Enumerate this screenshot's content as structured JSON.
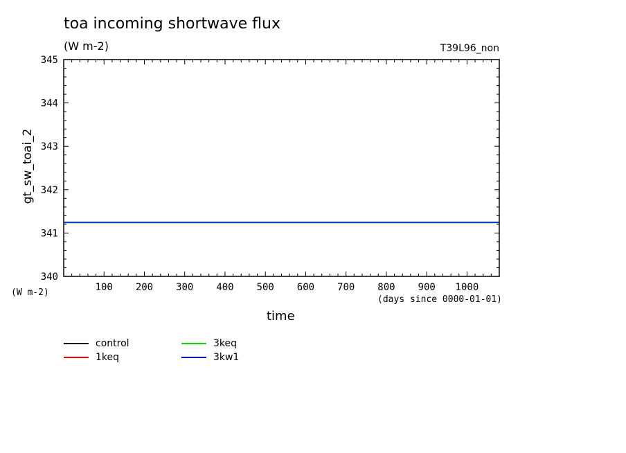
{
  "chart_data": {
    "type": "line",
    "title": "toa incoming shortwave flux",
    "units": "(W m-2)",
    "run_id": "T39L96_non",
    "ylabel": "gt_sw_toai_2",
    "ylabel_units": "(W m-2)",
    "xlabel": "time",
    "xlabel_units": "(days since 0000-01-01)",
    "xlim": [
      0,
      1080
    ],
    "ylim": [
      340,
      345
    ],
    "xticks": [
      100,
      200,
      300,
      400,
      500,
      600,
      700,
      800,
      900,
      1000
    ],
    "yticks": [
      340,
      341,
      342,
      343,
      344,
      345
    ],
    "x": [
      0,
      90,
      180,
      270,
      360,
      450,
      540,
      630,
      720,
      810,
      900,
      990,
      1080
    ],
    "series": [
      {
        "name": "control",
        "color": "#000000",
        "values": [
          341.24,
          341.24,
          341.24,
          341.24,
          341.24,
          341.24,
          341.24,
          341.24,
          341.24,
          341.24,
          341.24,
          341.24,
          341.24
        ]
      },
      {
        "name": "1keq",
        "color": "#ff0000",
        "values": [
          341.24,
          341.24,
          341.24,
          341.24,
          341.24,
          341.24,
          341.24,
          341.24,
          341.24,
          341.24,
          341.24,
          341.24,
          341.24
        ]
      },
      {
        "name": "3keq",
        "color": "#00dd00",
        "values": [
          341.24,
          341.24,
          341.24,
          341.24,
          341.24,
          341.24,
          341.24,
          341.24,
          341.24,
          341.24,
          341.24,
          341.24,
          341.24
        ]
      },
      {
        "name": "3kw1",
        "color": "#0000ff",
        "values": [
          341.25,
          341.25,
          341.25,
          341.25,
          341.25,
          341.25,
          341.25,
          341.25,
          341.25,
          341.25,
          341.25,
          341.25,
          341.25
        ]
      }
    ],
    "legend_position": "bottom-left",
    "grid": false
  }
}
